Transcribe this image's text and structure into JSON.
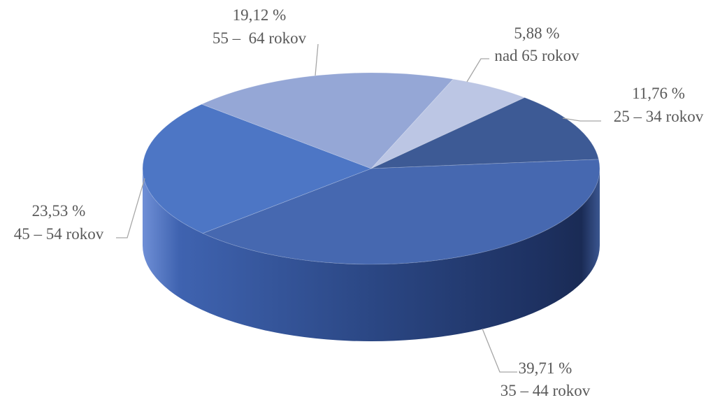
{
  "chart_data": {
    "type": "pie",
    "style": "3d",
    "title": "",
    "legend": "none",
    "slices": [
      {
        "label": "nad 65 rokov",
        "value": 5.88,
        "value_text": "5,88 %",
        "color": "#bcc6e4"
      },
      {
        "label": "25 – 34 rokov",
        "value": 11.76,
        "value_text": "11,76 %",
        "color": "#3d5a95"
      },
      {
        "label": "35 – 44 rokov",
        "value": 39.71,
        "value_text": "39,71 %",
        "color": "#4668b0"
      },
      {
        "label": "45 – 54 rokov",
        "value": 23.53,
        "value_text": "23,53 %",
        "color": "#4d76c5"
      },
      {
        "label": "55 –  64 rokov",
        "value": 19.12,
        "value_text": "19,12 %",
        "color": "#95a7d6"
      }
    ]
  }
}
